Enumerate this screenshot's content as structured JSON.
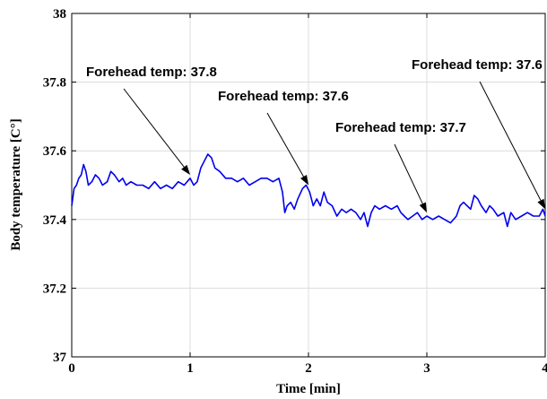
{
  "chart_data": {
    "type": "line",
    "title": "",
    "xlabel": "Time [min]",
    "ylabel": "Body temperature [C°]",
    "xlim": [
      0,
      4
    ],
    "ylim": [
      37,
      38
    ],
    "xticks": [
      0,
      1,
      2,
      3,
      4
    ],
    "xtick_labels": [
      "0",
      "1",
      "2",
      "3",
      "4"
    ],
    "yticks": [
      37,
      37.2,
      37.4,
      37.6,
      37.8,
      38
    ],
    "ytick_labels": [
      "37",
      "37.2",
      "37.4",
      "37.6",
      "37.8",
      "38"
    ],
    "grid": true,
    "series_color": "#0000ee",
    "series": [
      {
        "x": [
          0,
          0.02,
          0.04,
          0.06,
          0.08,
          0.1,
          0.12,
          0.14,
          0.17,
          0.2,
          0.23,
          0.26,
          0.3,
          0.33,
          0.36,
          0.4,
          0.43,
          0.46,
          0.5,
          0.55,
          0.6,
          0.65,
          0.7,
          0.75,
          0.8,
          0.85,
          0.9,
          0.95,
          1.0,
          1.03,
          1.06,
          1.09,
          1.12,
          1.15,
          1.18,
          1.21,
          1.25,
          1.3,
          1.35,
          1.4,
          1.45,
          1.5,
          1.55,
          1.6,
          1.65,
          1.7,
          1.75,
          1.78,
          1.8,
          1.82,
          1.85,
          1.88,
          1.91,
          1.95,
          1.98,
          2.01,
          2.04,
          2.07,
          2.1,
          2.13,
          2.16,
          2.2,
          2.24,
          2.28,
          2.32,
          2.36,
          2.4,
          2.44,
          2.47,
          2.5,
          2.53,
          2.56,
          2.6,
          2.65,
          2.7,
          2.75,
          2.78,
          2.81,
          2.84,
          2.88,
          2.92,
          2.96,
          3.0,
          3.05,
          3.1,
          3.15,
          3.2,
          3.25,
          3.28,
          3.31,
          3.34,
          3.37,
          3.4,
          3.43,
          3.46,
          3.5,
          3.53,
          3.56,
          3.6,
          3.65,
          3.68,
          3.71,
          3.75,
          3.8,
          3.85,
          3.9,
          3.95,
          3.98,
          4.0
        ],
        "y": [
          37.44,
          37.49,
          37.5,
          37.52,
          37.53,
          37.56,
          37.54,
          37.5,
          37.51,
          37.53,
          37.52,
          37.5,
          37.51,
          37.54,
          37.53,
          37.51,
          37.52,
          37.5,
          37.51,
          37.5,
          37.5,
          37.49,
          37.51,
          37.49,
          37.5,
          37.49,
          37.51,
          37.5,
          37.52,
          37.5,
          37.51,
          37.55,
          37.57,
          37.59,
          37.58,
          37.55,
          37.54,
          37.52,
          37.52,
          37.51,
          37.52,
          37.5,
          37.51,
          37.52,
          37.52,
          37.51,
          37.52,
          37.48,
          37.42,
          37.44,
          37.45,
          37.43,
          37.46,
          37.49,
          37.5,
          37.48,
          37.44,
          37.46,
          37.44,
          37.48,
          37.45,
          37.44,
          37.41,
          37.43,
          37.42,
          37.43,
          37.42,
          37.4,
          37.42,
          37.38,
          37.42,
          37.44,
          37.43,
          37.44,
          37.43,
          37.44,
          37.42,
          37.41,
          37.4,
          37.41,
          37.42,
          37.4,
          37.41,
          37.4,
          37.41,
          37.4,
          37.39,
          37.41,
          37.44,
          37.45,
          37.44,
          37.43,
          37.47,
          37.46,
          37.44,
          37.42,
          37.44,
          37.43,
          37.41,
          37.42,
          37.38,
          37.42,
          37.4,
          37.41,
          37.42,
          37.41,
          37.41,
          37.43,
          37.41
        ]
      }
    ],
    "annotations": [
      {
        "text": "Forehead temp: 37.8",
        "arrow_to": [
          1.0,
          37.53
        ]
      },
      {
        "text": "Forehead temp: 37.6",
        "arrow_to": [
          2.0,
          37.5
        ]
      },
      {
        "text": "Forehead temp: 37.7",
        "arrow_to": [
          3.0,
          37.42
        ]
      },
      {
        "text": "Forehead temp: 37.6",
        "arrow_to": [
          4.0,
          37.43
        ]
      }
    ]
  }
}
